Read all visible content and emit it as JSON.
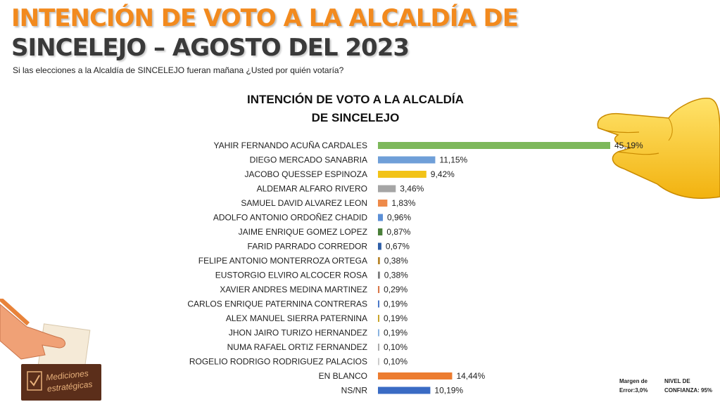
{
  "header": {
    "title_line1": "INTENCIÓN DE VOTO A LA ALCALDÍA DE",
    "title_line2": "SINCELEJO – AGOSTO DEL 2023",
    "question": "Si las elecciones a la  Alcaldía de SINCELEJO fueran mañana ¿Usted por quién votaría?"
  },
  "chart_data": {
    "type": "bar",
    "orientation": "horizontal",
    "title_line1": "INTENCIÓN DE VOTO A LA ALCALDÍA",
    "title_line2": "DE SINCELEJO",
    "categories": [
      "YAHIR FERNANDO  ACUÑA CARDALES",
      "DIEGO MERCADO SANABRIA",
      "JACOBO QUESSEP ESPINOZA",
      "ALDEMAR ALFARO RIVERO",
      "SAMUEL DAVID ALVAREZ LEON",
      "ADOLFO ANTONIO ORDOÑEZ CHADID",
      "JAIME ENRIQUE GOMEZ LOPEZ",
      "FARID PARRADO CORREDOR",
      "FELIPE ANTONIO MONTERROZA ORTEGA",
      "EUSTORGIO ELVIRO ALCOCER ROSA",
      "XAVIER ANDRES MEDINA MARTINEZ",
      "CARLOS ENRIQUE PATERNINA CONTRERAS",
      "ALEX MANUEL SIERRA PATERNINA",
      "JHON JAIRO TURIZO HERNANDEZ",
      "NUMA RAFAEL ORTIZ FERNANDEZ",
      "ROGELIO RODRIGO RODRIGUEZ PALACIOS",
      "EN BLANCO",
      "NS/NR"
    ],
    "values": [
      45.19,
      11.15,
      9.42,
      3.46,
      1.83,
      0.96,
      0.87,
      0.67,
      0.38,
      0.38,
      0.29,
      0.19,
      0.19,
      0.19,
      0.1,
      0.1,
      14.44,
      10.19
    ],
    "value_labels": [
      "45,19%",
      "11,15%",
      "9,42%",
      "3,46%",
      "1,83%",
      "0,96%",
      "0,87%",
      "0,67%",
      "0,38%",
      "0,38%",
      "0,29%",
      "0,19%",
      "0,19%",
      "0,19%",
      "0,10%",
      "0,10%",
      "14,44%",
      "10,19%"
    ],
    "colors": [
      "#7db85b",
      "#6f9fd8",
      "#f2c318",
      "#a5a5a5",
      "#ee8a4a",
      "#5b8fd6",
      "#4a7f3a",
      "#2f5fa8",
      "#b8862b",
      "#7a7a7a",
      "#d9784a",
      "#4a78c8",
      "#c9a52a",
      "#8ab4e0",
      "#aaaaaa",
      "#cccccc",
      "#ec7c30",
      "#3a6bc4"
    ],
    "xlim": [
      0,
      50
    ]
  },
  "notes": {
    "margin_line1": "Margen de",
    "margin_line2": "Error:3,0%",
    "confidence_line1": "NIVEL DE",
    "confidence_line2": "CONFIANZA: 95%"
  },
  "logo": {
    "line1": "Mediciones",
    "line2": "estratégicas"
  }
}
